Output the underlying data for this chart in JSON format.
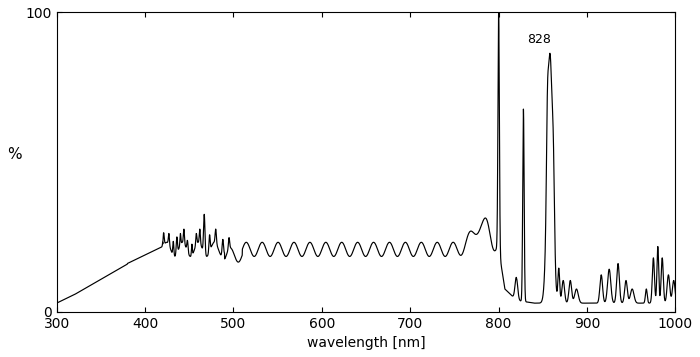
{
  "xlabel": "wavelength [nm]",
  "ylabel": "%",
  "xlim": [
    300,
    1000
  ],
  "ylim": [
    0,
    100
  ],
  "xticks": [
    300,
    400,
    500,
    600,
    700,
    800,
    900,
    1000
  ],
  "yticks": [
    0,
    100
  ],
  "annotation_text": "828",
  "line_color": "#000000",
  "background_color": "#ffffff"
}
